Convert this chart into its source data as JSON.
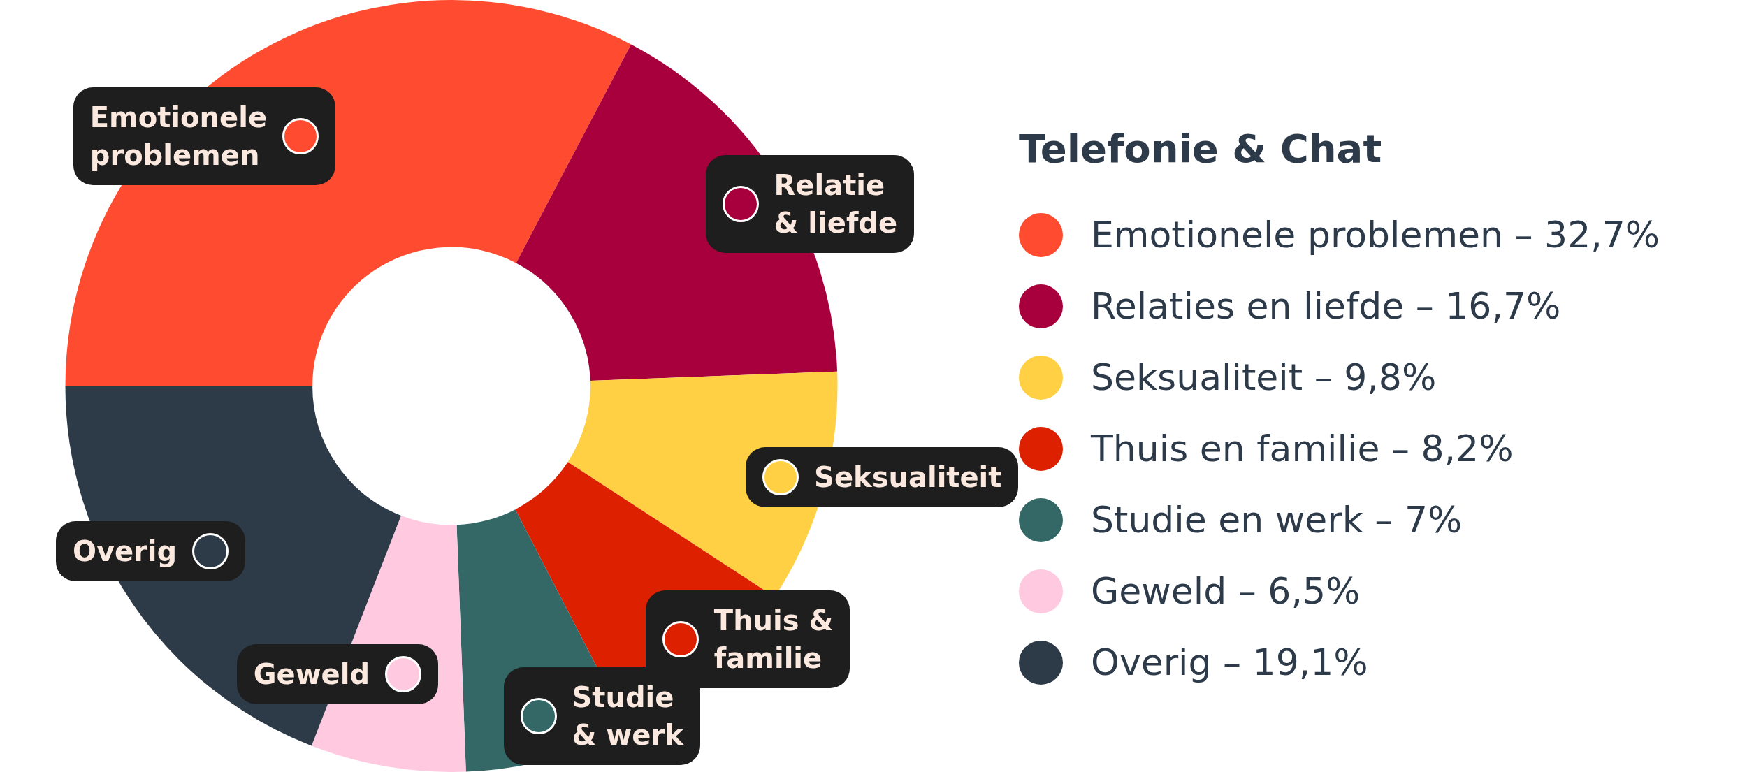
{
  "chart_data": {
    "type": "donut",
    "legend_title": "Telefonie & Chat",
    "legend": "right",
    "categories": [
      "Emotionele problemen – 32,7%",
      "Relaties en liefde – 16,7%",
      "Seksualiteit – 9,8%",
      "Thuis en familie – 8,2%",
      "Studie en werk – 7%",
      "Geweld – 6,5%",
      "Overig – 19,1%"
    ],
    "values": [
      32.7,
      16.7,
      9.8,
      8.2,
      7,
      6.5,
      19.1
    ],
    "colors": [
      "#ff4b2f",
      "#a8003c",
      "#ffd043",
      "#dc2000",
      "#336866",
      "#ffc9e0",
      "#2d3a48"
    ],
    "annotations": [
      {
        "text": "Emotionele\nproblemen",
        "x": "Emotionele problemen – 32,7%"
      },
      {
        "text": "Relatie\n& liefde",
        "x": "Relaties en liefde – 16,7%"
      },
      {
        "text": "Seksualiteit",
        "x": "Seksualiteit – 9,8%"
      },
      {
        "text": "Thuis &\nfamilie",
        "x": "Thuis en familie – 8,2%"
      },
      {
        "text": "Studie\n& werk",
        "x": "Studie en werk – 7%"
      },
      {
        "text": "Geweld",
        "x": "Geweld – 6,5%"
      },
      {
        "text": "Overig",
        "x": "Overig – 19,1%"
      }
    ]
  }
}
